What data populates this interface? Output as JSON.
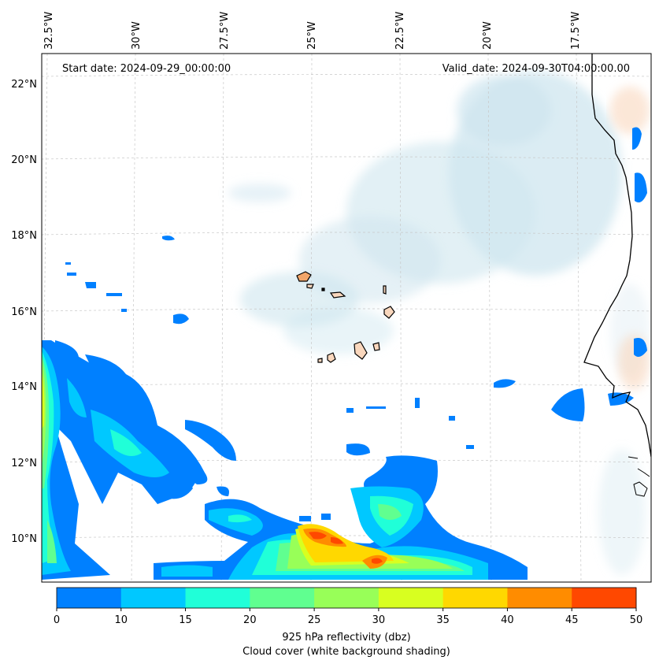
{
  "header": {
    "start_date": "Start date: 2024-09-29_00:00:00",
    "valid_date": "Valid_date: 2024-09-30T04:00:00.00"
  },
  "axes": {
    "lon_labels": [
      "32.5°W",
      "30°W",
      "27.5°W",
      "25°W",
      "22.5°W",
      "20°W",
      "17.5°W"
    ],
    "lat_labels": [
      "22°N",
      "20°N",
      "18°N",
      "16°N",
      "14°N",
      "12°N",
      "10°N"
    ]
  },
  "colorbar": {
    "ticks": [
      "0",
      "10",
      "15",
      "20",
      "25",
      "30",
      "35",
      "40",
      "45",
      "50"
    ],
    "colors": [
      "#0080ff",
      "#00c8ff",
      "#20ffd8",
      "#60ff90",
      "#98ff58",
      "#d8ff20",
      "#ffd800",
      "#ff8c00",
      "#ff4800"
    ],
    "label": "925 hPa reflectivity (dbz)",
    "sublabel": "Cloud cover (white background shading)"
  },
  "colors": {
    "land": "#f9d7bd",
    "land_dark": "#f2a66a",
    "cloud": "#cfe6ef",
    "grid": "#c8c8c8"
  }
}
